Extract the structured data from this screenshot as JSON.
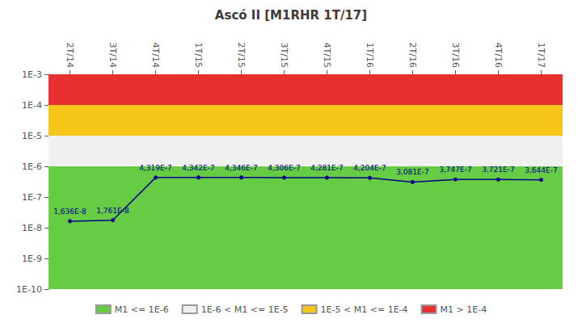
{
  "chart_data": {
    "type": "line",
    "title": "Ascó II [M1RHR 1T/17]",
    "categories": [
      "2T/14",
      "3T/14",
      "4T/14",
      "1T/15",
      "2T/15",
      "3T/15",
      "4T/15",
      "1T/16",
      "2T/16",
      "3T/16",
      "4T/16",
      "1T/17"
    ],
    "values": [
      1.636e-08,
      1.761e-08,
      4.319e-07,
      4.342e-07,
      4.346e-07,
      4.306e-07,
      4.281e-07,
      4.204e-07,
      3.081e-07,
      3.747e-07,
      3.721e-07,
      3.644e-07
    ],
    "value_labels": [
      "1,636E-8",
      "1,761E-8",
      "4,319E-7",
      "4,342E-7",
      "4,346E-7",
      "4,306E-7",
      "4,281E-7",
      "4,204E-7",
      "3,081E-7",
      "3,747E-7",
      "3,721E-7",
      "3,644E-7"
    ],
    "color": "#00008B",
    "marker": "circle",
    "data_labels": true,
    "log": "y",
    "ylim": [
      1e-10,
      0.001
    ],
    "yticks": [
      {
        "value": 1e-10,
        "label": "1E-10"
      },
      {
        "value": 1e-09,
        "label": "1E-9"
      },
      {
        "value": 1e-08,
        "label": "1E-8"
      },
      {
        "value": 1e-07,
        "label": "1E-7"
      },
      {
        "value": 1e-06,
        "label": "1E-6"
      },
      {
        "value": 1e-05,
        "label": "1E-5"
      },
      {
        "value": 0.0001,
        "label": "1E-4"
      },
      {
        "value": 0.001,
        "label": "1E-3"
      }
    ],
    "bands": [
      {
        "name": "M1 <= 1E-6",
        "color": "#66cc44",
        "range": [
          1e-10,
          1e-06
        ]
      },
      {
        "name": "1E-6 < M1 <= 1E-5",
        "color": "#f0f0f0",
        "range": [
          1e-06,
          1e-05
        ]
      },
      {
        "name": "1E-5 < M1 <= 1E-4",
        "color": "#f5c518",
        "range": [
          1e-05,
          0.0001
        ]
      },
      {
        "name": "M1 > 1E-4",
        "color": "#e83030",
        "range": [
          0.0001,
          0.001
        ]
      }
    ],
    "legend": "bottom",
    "grid": false
  }
}
